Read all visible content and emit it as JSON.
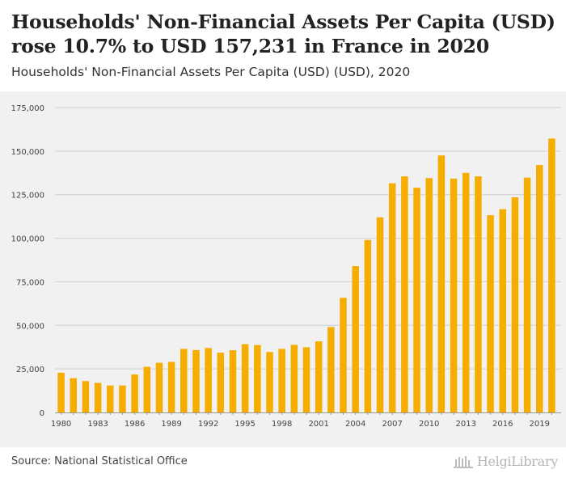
{
  "header": {
    "title": "Households' Non-Financial Assets Per Capita (USD) rose 10.7% to USD 157,231 in France in 2020",
    "subtitle": "Households' Non-Financial Assets Per Capita (USD) (USD), 2020"
  },
  "footer": {
    "source": "Source: National Statistical Office",
    "brand": "HelgiLibrary"
  },
  "colors": {
    "bar": "#f5ad00",
    "grid": "#cfcfcf",
    "plot_bg": "#f1f1f1",
    "tick_text": "#444444"
  },
  "chart_data": {
    "type": "bar",
    "title": "Households' Non-Financial Assets Per Capita (USD) rose 10.7% to USD 157,231 in France in 2020",
    "subtitle": "Households' Non-Financial Assets Per Capita (USD) (USD), 2020",
    "xlabel": "",
    "ylabel": "",
    "ylim": [
      0,
      175000
    ],
    "yticks": [
      0,
      25000,
      50000,
      75000,
      100000,
      125000,
      150000,
      175000
    ],
    "ytick_labels": [
      "0",
      "25,000",
      "50,000",
      "75,000",
      "100,000",
      "125,000",
      "150,000",
      "175,000"
    ],
    "xtick_labels": [
      "1980",
      "1983",
      "1986",
      "1989",
      "1992",
      "1995",
      "1998",
      "2001",
      "2004",
      "2007",
      "2010",
      "2013",
      "2016",
      "2019"
    ],
    "categories": [
      "1980",
      "1981",
      "1982",
      "1983",
      "1984",
      "1985",
      "1986",
      "1987",
      "1988",
      "1989",
      "1990",
      "1991",
      "1992",
      "1993",
      "1994",
      "1995",
      "1996",
      "1997",
      "1998",
      "1999",
      "2000",
      "2001",
      "2002",
      "2003",
      "2004",
      "2005",
      "2006",
      "2007",
      "2008",
      "2009",
      "2010",
      "2011",
      "2012",
      "2013",
      "2014",
      "2015",
      "2016",
      "2017",
      "2018",
      "2019",
      "2020"
    ],
    "values": [
      22800,
      19700,
      18000,
      17000,
      15500,
      15500,
      21800,
      26200,
      28500,
      29000,
      36500,
      35800,
      37000,
      34300,
      35700,
      39200,
      38700,
      34700,
      36500,
      38800,
      37400,
      40800,
      49000,
      65800,
      84000,
      99000,
      112000,
      131500,
      135500,
      129000,
      134500,
      147500,
      134200,
      137500,
      135500,
      113200,
      116700,
      123500,
      134800,
      142000,
      157231
    ],
    "grid": true,
    "legend": "none"
  }
}
